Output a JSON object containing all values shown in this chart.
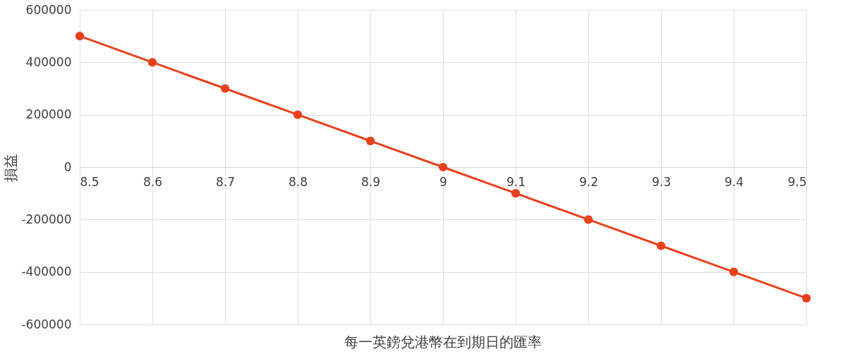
{
  "chart_data": {
    "type": "line",
    "xlabel": "每一英鎊兌港幣在到期日的匯率",
    "ylabel": "損益",
    "x": [
      8.5,
      8.6,
      8.7,
      8.8,
      8.9,
      9,
      9.1,
      9.2,
      9.3,
      9.4,
      9.5
    ],
    "series": [
      {
        "color": "#e8401c",
        "values": [
          500000,
          400000,
          300000,
          200000,
          100000,
          0,
          -100000,
          -200000,
          -300000,
          -400000,
          -500000
        ]
      }
    ],
    "xlim": [
      8.5,
      9.5
    ],
    "xticks": [
      8.5,
      8.6,
      8.7,
      8.8,
      8.9,
      9,
      9.1,
      9.2,
      9.3,
      9.4,
      9.5
    ],
    "ylim": [
      -600000,
      600000
    ],
    "yticks": [
      -600000,
      -400000,
      -200000,
      0,
      200000,
      400000,
      600000
    ],
    "grid": true,
    "marker": "circle",
    "line_style": "solid"
  }
}
